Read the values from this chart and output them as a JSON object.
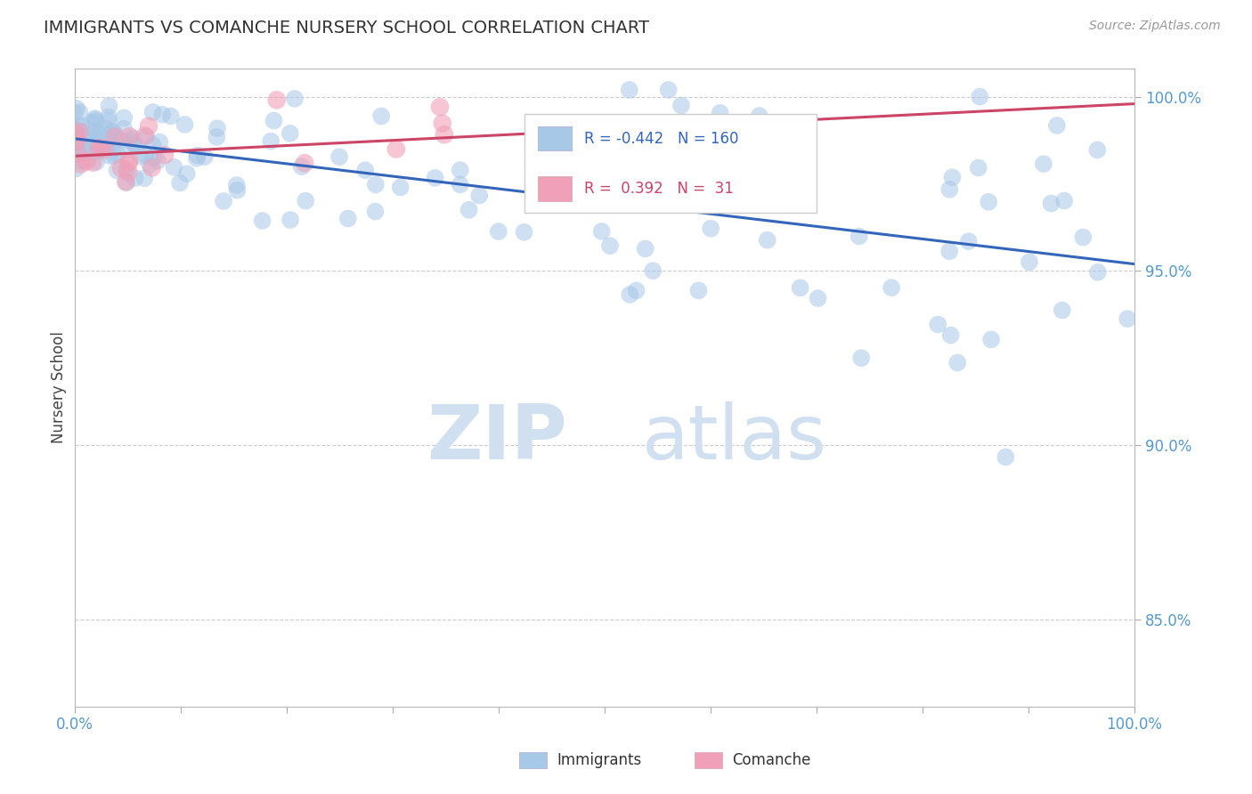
{
  "title": "IMMIGRANTS VS COMANCHE NURSERY SCHOOL CORRELATION CHART",
  "source_text": "Source: ZipAtlas.com",
  "ylabel": "Nursery School",
  "legend_label_immigrants": "Immigrants",
  "legend_label_comanche": "Comanche",
  "R_immigrants": -0.442,
  "N_immigrants": 160,
  "R_comanche": 0.392,
  "N_comanche": 31,
  "xlim": [
    0.0,
    1.0
  ],
  "ylim": [
    0.825,
    1.008
  ],
  "yticks": [
    0.85,
    0.9,
    0.95,
    1.0
  ],
  "ytick_labels": [
    "85.0%",
    "90.0%",
    "95.0%",
    "100.0%"
  ],
  "color_immigrants": "#a8c8e8",
  "color_comanche": "#f0a0b8",
  "trendline_color_immigrants": "#3366bb",
  "trendline_color_comanche": "#cc4466",
  "background_color": "#ffffff",
  "watermark_color": "#d0e0f0",
  "grid_color": "#cccccc",
  "trendline_imm_y0": 0.988,
  "trendline_imm_y1": 0.952,
  "trendline_com_y0": 0.983,
  "trendline_com_y1": 0.998
}
